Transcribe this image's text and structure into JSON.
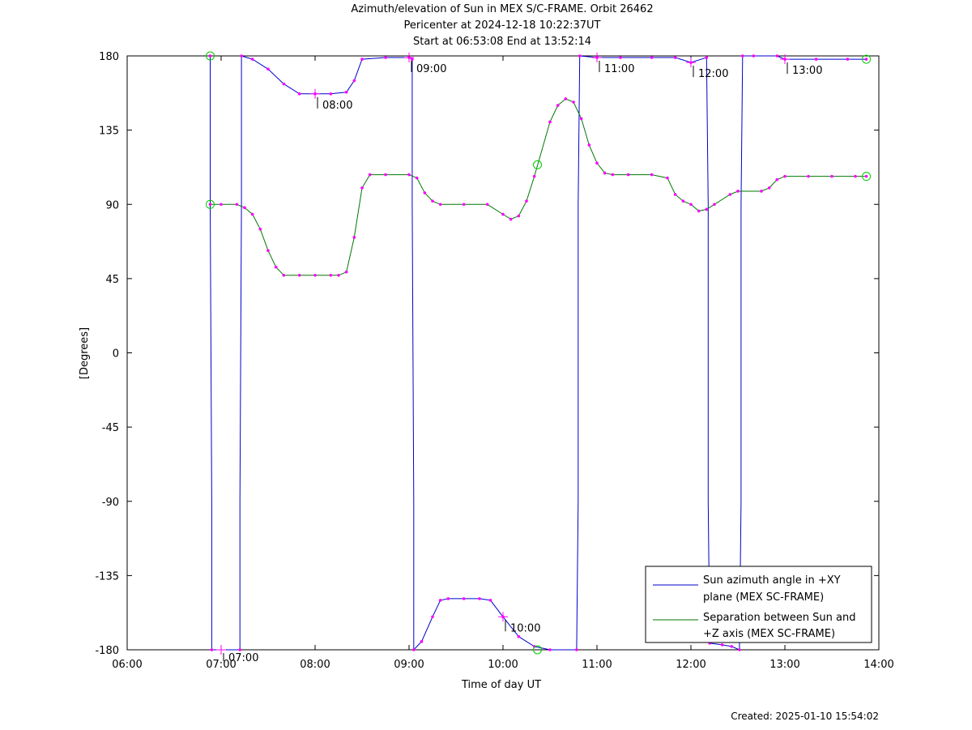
{
  "titles": [
    "Azimuth/elevation of Sun in MEX S/C-FRAME.  Orbit 26462",
    "Pericenter at 2024-12-18 10:22:37UT",
    "Start at 06:53:08 End at 13:52:14"
  ],
  "footer": "Created: 2025-01-10 15:54:02",
  "chart_data": {
    "type": "line",
    "xlabel": "Time of day UT",
    "ylabel": "[Degrees]",
    "xlim": [
      "06:00",
      "14:00"
    ],
    "ylim": [
      -180,
      180
    ],
    "xticks": [
      "06:00",
      "07:00",
      "08:00",
      "09:00",
      "10:00",
      "11:00",
      "12:00",
      "13:00",
      "14:00"
    ],
    "yticks": [
      -180,
      -135,
      -90,
      -45,
      0,
      45,
      90,
      135,
      180
    ],
    "grid": false,
    "legend_position": "bottom-right",
    "colors": {
      "azimuth": "#0000cc",
      "separation": "#007700",
      "markers": "#ff00ff",
      "endpoints": "#00cc00"
    },
    "series": [
      {
        "name": "Sun azimuth angle in +XY plane (MEX SC-FRAME)",
        "legend_lines": [
          "Sun azimuth angle in +XY",
          "plane (MEX SC-FRAME)"
        ],
        "color": "#0000cc",
        "points": [
          [
            "06:53",
            180
          ],
          [
            "06:53",
            90
          ],
          [
            "06:54",
            -90
          ],
          [
            "06:54",
            -180
          ],
          [
            "07:12",
            -180
          ],
          [
            "07:12",
            -90
          ],
          [
            "07:13",
            90
          ],
          [
            "07:13",
            180
          ],
          [
            "07:20",
            178
          ],
          [
            "07:30",
            172
          ],
          [
            "07:40",
            163
          ],
          [
            "07:50",
            157
          ],
          [
            "08:00",
            157
          ],
          [
            "08:10",
            157
          ],
          [
            "08:20",
            158
          ],
          [
            "08:25",
            165
          ],
          [
            "08:30",
            178
          ],
          [
            "08:45",
            179
          ],
          [
            "09:00",
            179
          ],
          [
            "09:02",
            178
          ],
          [
            "09:02",
            90
          ],
          [
            "09:03",
            -90
          ],
          [
            "09:03",
            -180
          ],
          [
            "09:08",
            -175
          ],
          [
            "09:15",
            -160
          ],
          [
            "09:20",
            -150
          ],
          [
            "09:25",
            -149
          ],
          [
            "09:35",
            -149
          ],
          [
            "09:45",
            -149
          ],
          [
            "09:52",
            -150
          ],
          [
            "10:00",
            -160
          ],
          [
            "10:10",
            -172
          ],
          [
            "10:20",
            -178
          ],
          [
            "10:30",
            -180
          ],
          [
            "10:47",
            -180
          ],
          [
            "10:48",
            -90
          ],
          [
            "10:48",
            90
          ],
          [
            "10:49",
            180
          ],
          [
            "11:00",
            179
          ],
          [
            "11:15",
            179
          ],
          [
            "11:35",
            179
          ],
          [
            "11:50",
            179
          ],
          [
            "12:00",
            176
          ],
          [
            "12:10",
            179
          ],
          [
            "12:11",
            90
          ],
          [
            "12:11",
            -90
          ],
          [
            "12:12",
            -176
          ],
          [
            "12:20",
            -177
          ],
          [
            "12:26",
            -178
          ],
          [
            "12:31",
            -180
          ],
          [
            "12:32",
            -90
          ],
          [
            "12:32",
            90
          ],
          [
            "12:33",
            180
          ],
          [
            "12:40",
            180
          ],
          [
            "12:55",
            180
          ],
          [
            "13:00",
            178
          ],
          [
            "13:20",
            178
          ],
          [
            "13:40",
            178
          ],
          [
            "13:52",
            178
          ]
        ]
      },
      {
        "name": "Separation between Sun and +Z axis (MEX SC-FRAME)",
        "legend_lines": [
          "Separation between Sun and",
          "+Z axis (MEX SC-FRAME)"
        ],
        "color": "#007700",
        "points": [
          [
            "06:53",
            90
          ],
          [
            "07:00",
            90
          ],
          [
            "07:10",
            90
          ],
          [
            "07:15",
            88
          ],
          [
            "07:20",
            84
          ],
          [
            "07:25",
            75
          ],
          [
            "07:30",
            62
          ],
          [
            "07:35",
            52
          ],
          [
            "07:40",
            47
          ],
          [
            "07:50",
            47
          ],
          [
            "08:00",
            47
          ],
          [
            "08:10",
            47
          ],
          [
            "08:15",
            47
          ],
          [
            "08:20",
            49
          ],
          [
            "08:25",
            70
          ],
          [
            "08:30",
            100
          ],
          [
            "08:35",
            108
          ],
          [
            "08:45",
            108
          ],
          [
            "09:00",
            108
          ],
          [
            "09:05",
            106
          ],
          [
            "09:10",
            97
          ],
          [
            "09:15",
            92
          ],
          [
            "09:20",
            90
          ],
          [
            "09:35",
            90
          ],
          [
            "09:50",
            90
          ],
          [
            "10:00",
            84
          ],
          [
            "10:05",
            81
          ],
          [
            "10:10",
            83
          ],
          [
            "10:15",
            92
          ],
          [
            "10:20",
            107
          ],
          [
            "10:30",
            140
          ],
          [
            "10:35",
            150
          ],
          [
            "10:40",
            154
          ],
          [
            "10:45",
            152
          ],
          [
            "10:50",
            142
          ],
          [
            "10:55",
            126
          ],
          [
            "11:00",
            115
          ],
          [
            "11:05",
            109
          ],
          [
            "11:10",
            108
          ],
          [
            "11:20",
            108
          ],
          [
            "11:35",
            108
          ],
          [
            "11:45",
            106
          ],
          [
            "11:50",
            96
          ],
          [
            "11:55",
            92
          ],
          [
            "12:00",
            90
          ],
          [
            "12:05",
            86
          ],
          [
            "12:10",
            87
          ],
          [
            "12:15",
            90
          ],
          [
            "12:25",
            96
          ],
          [
            "12:30",
            98
          ],
          [
            "12:45",
            98
          ],
          [
            "12:50",
            100
          ],
          [
            "12:55",
            105
          ],
          [
            "13:00",
            107
          ],
          [
            "13:15",
            107
          ],
          [
            "13:30",
            107
          ],
          [
            "13:45",
            107
          ],
          [
            "13:52",
            107
          ]
        ]
      }
    ],
    "annotations": [
      {
        "text": "07:00",
        "x": "07:00",
        "y": -180
      },
      {
        "text": "08:00",
        "x": "08:00",
        "y": 157
      },
      {
        "text": "09:00",
        "x": "09:00",
        "y": 179
      },
      {
        "text": "10:00",
        "x": "10:00",
        "y": -160
      },
      {
        "text": "11:00",
        "x": "11:00",
        "y": 179
      },
      {
        "text": "12:00",
        "x": "12:00",
        "y": 176
      },
      {
        "text": "13:00",
        "x": "13:00",
        "y": 178
      }
    ],
    "endpoint_markers": [
      {
        "x": "06:53",
        "y": 180
      },
      {
        "x": "06:53",
        "y": 90
      },
      {
        "x": "13:52",
        "y": 178
      },
      {
        "x": "13:52",
        "y": 107
      },
      {
        "x": "10:22",
        "y": 114
      },
      {
        "x": "10:22",
        "y": -180
      }
    ]
  }
}
